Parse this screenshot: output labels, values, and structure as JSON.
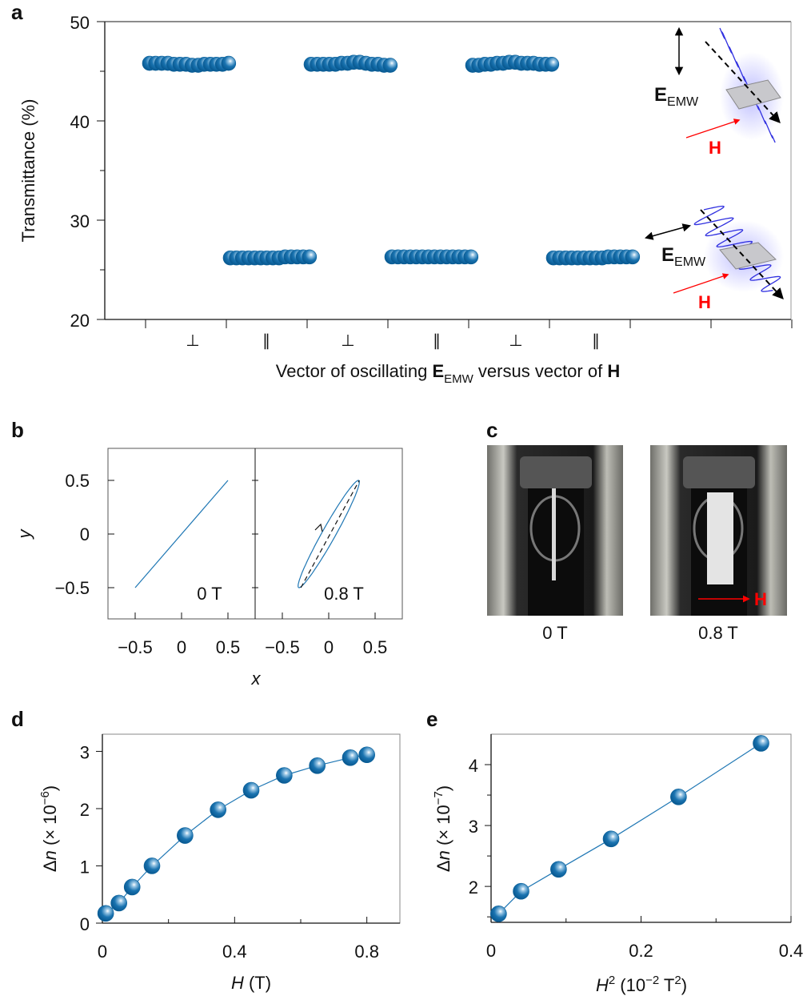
{
  "panel_labels": {
    "a": "a",
    "b": "b",
    "c": "c",
    "d": "d",
    "e": "e"
  },
  "colors": {
    "marker": "#0a6aa8",
    "line": "#1f77b4",
    "field": "#ff0000",
    "wave": "#3030e0"
  },
  "chart_data": [
    {
      "panel": "a",
      "type": "scatter",
      "ylabel": "Transmittance (%)",
      "xlabel": {
        "pre": "Vector of oscillating ",
        "E": "E",
        "sub": "EMW",
        "mid": " versus vector of ",
        "H": "H"
      },
      "ylim": [
        20,
        50
      ],
      "yticks": [
        "20",
        "30",
        "40",
        "50"
      ],
      "categories": [
        "⊥",
        "∥",
        "⊥",
        "∥",
        "⊥",
        "∥"
      ],
      "series": [
        {
          "category": "⊥",
          "values": [
            45.8,
            45.8,
            45.8,
            45.8,
            45.7,
            45.7,
            45.7,
            45.6,
            45.6,
            45.7,
            45.7,
            45.7,
            45.7,
            45.8
          ]
        },
        {
          "category": "∥",
          "values": [
            26.2,
            26.2,
            26.2,
            26.2,
            26.2,
            26.2,
            26.2,
            26.2,
            26.2,
            26.3,
            26.3,
            26.3,
            26.3,
            26.3
          ]
        },
        {
          "category": "⊥",
          "values": [
            45.7,
            45.7,
            45.7,
            45.7,
            45.7,
            45.8,
            45.8,
            45.9,
            45.9,
            45.8,
            45.7,
            45.7,
            45.6,
            45.6
          ]
        },
        {
          "category": "∥",
          "values": [
            26.3,
            26.3,
            26.3,
            26.3,
            26.3,
            26.3,
            26.3,
            26.3,
            26.3,
            26.3,
            26.3,
            26.3,
            26.3,
            26.3
          ]
        },
        {
          "category": "⊥",
          "values": [
            45.6,
            45.6,
            45.7,
            45.7,
            45.8,
            45.8,
            45.9,
            45.9,
            45.8,
            45.8,
            45.8,
            45.7,
            45.7,
            45.7
          ]
        },
        {
          "category": "∥",
          "values": [
            26.2,
            26.2,
            26.2,
            26.2,
            26.2,
            26.2,
            26.2,
            26.2,
            26.2,
            26.3,
            26.3,
            26.3,
            26.3,
            26.3
          ]
        }
      ],
      "insets": [
        {
          "E": "E",
          "sub": "EMW",
          "H": "H"
        },
        {
          "E": "E",
          "sub": "EMW",
          "H": "H"
        }
      ]
    },
    {
      "panel": "b",
      "type": "line",
      "xlabel": "x",
      "ylabel": "y",
      "xticks": [
        "−0.5",
        "0",
        "0.5"
      ],
      "yticks": [
        "0.5",
        "0",
        "−0.5"
      ],
      "xlim": [
        -0.8,
        0.8
      ],
      "ylim": [
        -0.8,
        0.8
      ],
      "subplots": [
        {
          "label": "0 T",
          "shape": "line",
          "from": [
            -0.5,
            -0.5
          ],
          "to": [
            0.5,
            0.5
          ]
        },
        {
          "label": "0.8 T",
          "shape": "ellipse",
          "x_amplitude": 0.33,
          "y_amplitude": 0.5,
          "phase": 0.25
        }
      ]
    },
    {
      "panel": "d",
      "type": "scatter",
      "xlabel": {
        "var": "H",
        "rest": " (T)"
      },
      "ylabel": {
        "delta": "Δ",
        "var": "n",
        "rest": " (× 10",
        "exp": "−6",
        "close": ")"
      },
      "xlim": [
        0,
        0.9
      ],
      "ylim": [
        0,
        3.3
      ],
      "xticks": [
        "0",
        "0.4",
        "0.8"
      ],
      "yticks": [
        "0",
        "1",
        "2",
        "3"
      ],
      "x": [
        0.01,
        0.05,
        0.09,
        0.15,
        0.25,
        0.35,
        0.45,
        0.55,
        0.65,
        0.75,
        0.8
      ],
      "y": [
        0.17,
        0.35,
        0.63,
        1.0,
        1.53,
        1.98,
        2.32,
        2.58,
        2.75,
        2.89,
        2.94
      ]
    },
    {
      "panel": "e",
      "type": "scatter",
      "xlabel": {
        "var": "H",
        "sup": "2",
        "rest": " (10",
        "exp": "−2",
        "unit": " T",
        "unitexp": "2",
        "close": ")"
      },
      "ylabel": {
        "delta": "Δ",
        "var": "n",
        "rest": " (× 10",
        "exp": "−7",
        "close": ")"
      },
      "xlim": [
        0,
        0.4
      ],
      "ylim": [
        1.41,
        4.5
      ],
      "xticks": [
        "0",
        "0.2",
        "0.4"
      ],
      "yticks": [
        "2",
        "3",
        "4"
      ],
      "x": [
        0.01,
        0.04,
        0.09,
        0.16,
        0.25,
        0.36
      ],
      "y": [
        1.55,
        1.92,
        2.28,
        2.78,
        3.47,
        4.35
      ]
    }
  ],
  "photos": {
    "left_caption": "0 T",
    "right_caption": "0.8 T",
    "field_label": "H"
  }
}
